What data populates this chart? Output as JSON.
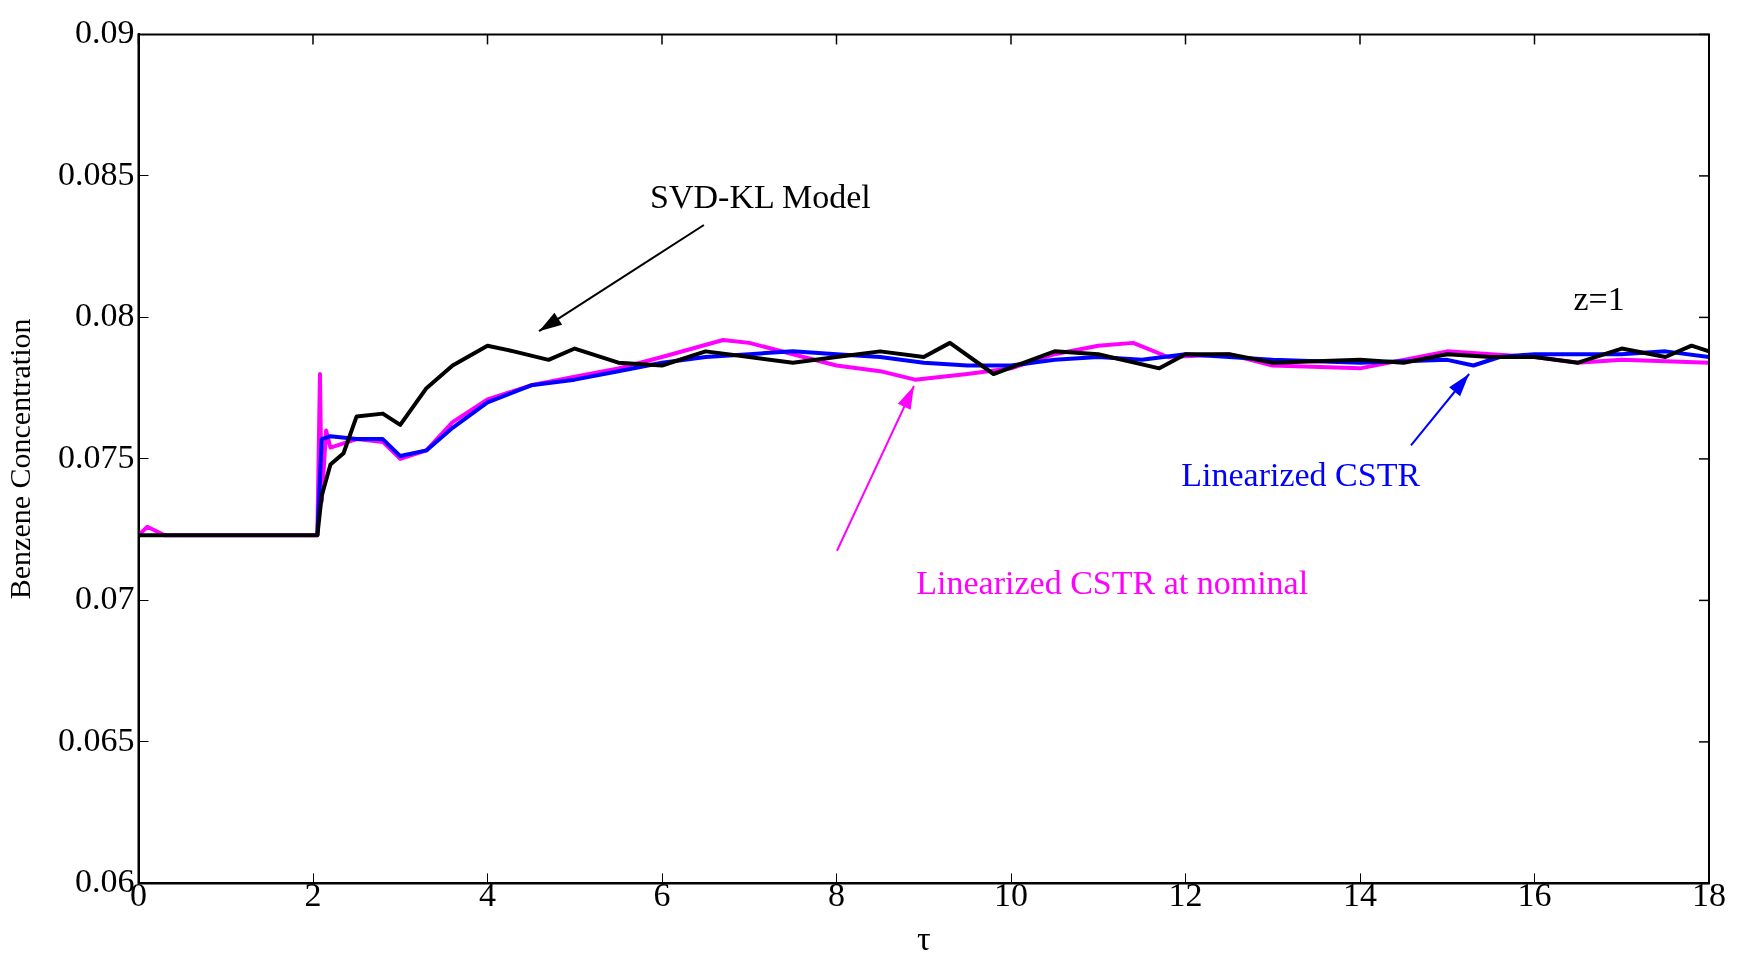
{
  "chart_data": {
    "type": "line",
    "xlabel": "τ",
    "ylabel": "Benzene Concentration",
    "annotations": [
      "z=1"
    ],
    "xlim": [
      0,
      18
    ],
    "ylim": [
      0.06,
      0.09
    ],
    "xticks": [
      0,
      2,
      4,
      6,
      8,
      10,
      12,
      14,
      16,
      18
    ],
    "yticks": [
      0.06,
      0.065,
      0.07,
      0.075,
      0.08,
      0.085,
      0.09
    ],
    "grid": false,
    "marker": "none",
    "line_style": "solid",
    "series": [
      {
        "name": "SVD-KL Model",
        "color": "#000000",
        "x": [
          0,
          2.05,
          2.1,
          2.2,
          2.35,
          2.5,
          2.8,
          3.0,
          3.3,
          3.6,
          4.0,
          4.3,
          4.7,
          5.0,
          5.5,
          6.0,
          6.5,
          7.0,
          7.5,
          8.0,
          8.5,
          9.0,
          9.3,
          9.8,
          10.5,
          11.0,
          11.7,
          12.0,
          12.5,
          13.0,
          14.0,
          14.5,
          15.0,
          15.5,
          16.0,
          16.5,
          17.0,
          17.5,
          17.8,
          18.0
        ],
        "values": [
          0.0723,
          0.0723,
          0.0737,
          0.0748,
          0.0752,
          0.0765,
          0.0766,
          0.0762,
          0.0775,
          0.0783,
          0.079,
          0.0788,
          0.0785,
          0.0789,
          0.0784,
          0.0783,
          0.0788,
          0.0786,
          0.0784,
          0.0786,
          0.0788,
          0.0786,
          0.0791,
          0.078,
          0.0788,
          0.0787,
          0.0782,
          0.0787,
          0.0787,
          0.0784,
          0.0785,
          0.0784,
          0.0787,
          0.0786,
          0.0786,
          0.0784,
          0.0789,
          0.0786,
          0.079,
          0.0788
        ]
      },
      {
        "name": "Linearized CSTR",
        "color": "#0000ff",
        "x": [
          2.05,
          2.1,
          2.2,
          2.5,
          2.8,
          3.0,
          3.3,
          3.6,
          4.0,
          4.5,
          5.0,
          5.5,
          6.0,
          6.5,
          7.0,
          7.5,
          8.0,
          8.5,
          9.0,
          9.5,
          10.0,
          10.5,
          11.0,
          11.5,
          12.0,
          12.5,
          13.0,
          14.0,
          15.0,
          15.3,
          15.6,
          16.0,
          17.0,
          17.5,
          18.0
        ],
        "values": [
          0.0723,
          0.0757,
          0.0758,
          0.0757,
          0.0757,
          0.0751,
          0.0753,
          0.0761,
          0.077,
          0.0776,
          0.0778,
          0.0781,
          0.0784,
          0.0786,
          0.0787,
          0.0788,
          0.0787,
          0.0786,
          0.0784,
          0.0783,
          0.0783,
          0.0785,
          0.0786,
          0.0785,
          0.0787,
          0.0786,
          0.0785,
          0.0784,
          0.0785,
          0.0783,
          0.0786,
          0.0787,
          0.0787,
          0.0788,
          0.0786
        ]
      },
      {
        "name": "Linearized CSTR at nominal",
        "color": "#ff00ff",
        "x": [
          0,
          0.1,
          0.3,
          2.05,
          2.08,
          2.1,
          2.15,
          2.2,
          2.5,
          2.8,
          3.0,
          3.3,
          3.6,
          4.0,
          4.5,
          5.0,
          5.5,
          6.0,
          6.7,
          7.0,
          7.5,
          8.0,
          8.5,
          8.9,
          9.5,
          10.0,
          10.5,
          11.0,
          11.4,
          11.8,
          12.5,
          13.0,
          14.0,
          14.5,
          15.0,
          15.5,
          16.0,
          16.5,
          17.0,
          18.0
        ],
        "values": [
          0.0723,
          0.0726,
          0.0723,
          0.0723,
          0.078,
          0.0735,
          0.076,
          0.0754,
          0.0757,
          0.0756,
          0.075,
          0.0753,
          0.0763,
          0.0771,
          0.0776,
          0.0779,
          0.0782,
          0.0786,
          0.0792,
          0.0791,
          0.0787,
          0.0783,
          0.0781,
          0.0778,
          0.078,
          0.0782,
          0.0787,
          0.079,
          0.0791,
          0.0786,
          0.0787,
          0.0783,
          0.0782,
          0.0785,
          0.0788,
          0.0787,
          0.0786,
          0.0784,
          0.0785,
          0.0784
        ]
      }
    ]
  }
}
